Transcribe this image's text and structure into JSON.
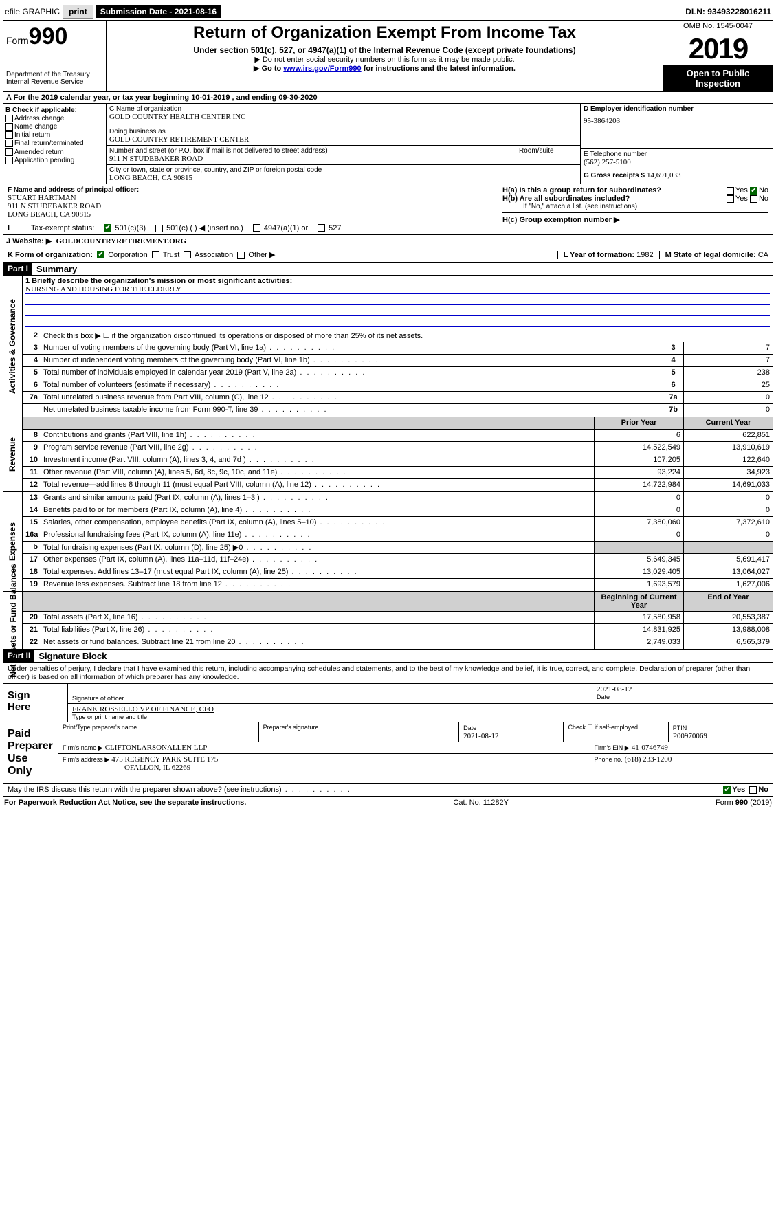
{
  "topbar": {
    "efile": "efile GRAPHIC",
    "print": "print",
    "subdate_label": "Submission Date - 2021-08-16",
    "dln": "DLN: 93493228016211"
  },
  "header": {
    "form_label": "Form",
    "form_num": "990",
    "dept": "Department of the Treasury",
    "irs": "Internal Revenue Service",
    "title": "Return of Organization Exempt From Income Tax",
    "subtitle": "Under section 501(c), 527, or 4947(a)(1) of the Internal Revenue Code (except private foundations)",
    "note1": "▶ Do not enter social security numbers on this form as it may be made public.",
    "note2_pre": "▶ Go to ",
    "note2_link": "www.irs.gov/Form990",
    "note2_post": " for instructions and the latest information.",
    "omb": "OMB No. 1545-0047",
    "year": "2019",
    "inspect": "Open to Public Inspection"
  },
  "sectionA": "A For the 2019 calendar year, or tax year beginning 10-01-2019     , and ending 09-30-2020",
  "boxB": {
    "title": "B Check if applicable:",
    "items": [
      "Address change",
      "Name change",
      "Initial return",
      "Final return/terminated",
      "Amended return",
      "Application pending"
    ]
  },
  "boxC": {
    "name_label": "C Name of organization",
    "name": "GOLD COUNTRY HEALTH CENTER INC",
    "dba_label": "Doing business as",
    "dba": "GOLD COUNTRY RETIREMENT CENTER",
    "addr_label": "Number and street (or P.O. box if mail is not delivered to street address)",
    "room_label": "Room/suite",
    "addr": "911 N STUDEBAKER ROAD",
    "city_label": "City or town, state or province, country, and ZIP or foreign postal code",
    "city": "LONG BEACH, CA  90815"
  },
  "boxD": {
    "label": "D Employer identification number",
    "value": "95-3864203"
  },
  "boxE": {
    "label": "E Telephone number",
    "value": "(562) 257-5100"
  },
  "boxG": {
    "label": "G Gross receipts $",
    "value": "14,691,033"
  },
  "boxF": {
    "label": "F Name and address of principal officer:",
    "name": "STUART HARTMAN",
    "addr1": "911 N STUDEBAKER ROAD",
    "addr2": "LONG BEACH, CA  90815"
  },
  "boxH": {
    "a": "H(a)  Is this a group return for subordinates?",
    "b": "H(b)  Are all subordinates included?",
    "b_note": "If \"No,\" attach a list. (see instructions)",
    "c": "H(c)  Group exemption number ▶",
    "yes": "Yes",
    "no": "No"
  },
  "boxI": {
    "label": "Tax-exempt status:",
    "opts": [
      "501(c)(3)",
      "501(c) (  ) ◀ (insert no.)",
      "4947(a)(1) or",
      "527"
    ]
  },
  "boxJ": {
    "label": "J  Website: ▶",
    "value": "GOLDCOUNTRYRETIREMENT.ORG"
  },
  "boxK": {
    "label": "K Form of organization:",
    "opts": [
      "Corporation",
      "Trust",
      "Association",
      "Other ▶"
    ]
  },
  "boxL": {
    "label": "L Year of formation:",
    "value": "1982"
  },
  "boxM": {
    "label": "M State of legal domicile:",
    "value": "CA"
  },
  "partI": {
    "head": "Part I",
    "title": "Summary"
  },
  "summary": {
    "tabs": [
      "Activities & Governance",
      "Revenue",
      "Expenses",
      "Net Assets or Fund Balances"
    ],
    "line1_label": "1  Briefly describe the organization's mission or most significant activities:",
    "line1_value": "NURSING AND HOUSING FOR THE ELDERLY",
    "line2": "Check this box ▶ ☐  if the organization discontinued its operations or disposed of more than 25% of its net assets.",
    "rows_top": [
      {
        "n": "3",
        "t": "Number of voting members of the governing body (Part VI, line 1a)",
        "b": "3",
        "v": "7"
      },
      {
        "n": "4",
        "t": "Number of independent voting members of the governing body (Part VI, line 1b)",
        "b": "4",
        "v": "7"
      },
      {
        "n": "5",
        "t": "Total number of individuals employed in calendar year 2019 (Part V, line 2a)",
        "b": "5",
        "v": "238"
      },
      {
        "n": "6",
        "t": "Total number of volunteers (estimate if necessary)",
        "b": "6",
        "v": "25"
      },
      {
        "n": "7a",
        "t": "Total unrelated business revenue from Part VIII, column (C), line 12",
        "b": "7a",
        "v": "0"
      },
      {
        "n": "",
        "t": "Net unrelated business taxable income from Form 990-T, line 39",
        "b": "7b",
        "v": "0"
      }
    ],
    "col_heads": {
      "prior": "Prior Year",
      "current": "Current Year",
      "boy": "Beginning of Current Year",
      "eoy": "End of Year"
    },
    "rows_rev": [
      {
        "n": "8",
        "t": "Contributions and grants (Part VIII, line 1h)",
        "p": "6",
        "c": "622,851"
      },
      {
        "n": "9",
        "t": "Program service revenue (Part VIII, line 2g)",
        "p": "14,522,549",
        "c": "13,910,619"
      },
      {
        "n": "10",
        "t": "Investment income (Part VIII, column (A), lines 3, 4, and 7d )",
        "p": "107,205",
        "c": "122,640"
      },
      {
        "n": "11",
        "t": "Other revenue (Part VIII, column (A), lines 5, 6d, 8c, 9c, 10c, and 11e)",
        "p": "93,224",
        "c": "34,923"
      },
      {
        "n": "12",
        "t": "Total revenue—add lines 8 through 11 (must equal Part VIII, column (A), line 12)",
        "p": "14,722,984",
        "c": "14,691,033"
      }
    ],
    "rows_exp": [
      {
        "n": "13",
        "t": "Grants and similar amounts paid (Part IX, column (A), lines 1–3 )",
        "p": "0",
        "c": "0"
      },
      {
        "n": "14",
        "t": "Benefits paid to or for members (Part IX, column (A), line 4)",
        "p": "0",
        "c": "0"
      },
      {
        "n": "15",
        "t": "Salaries, other compensation, employee benefits (Part IX, column (A), lines 5–10)",
        "p": "7,380,060",
        "c": "7,372,610"
      },
      {
        "n": "16a",
        "t": "Professional fundraising fees (Part IX, column (A), line 11e)",
        "p": "0",
        "c": "0"
      },
      {
        "n": "b",
        "t": "Total fundraising expenses (Part IX, column (D), line 25) ▶0",
        "p": "",
        "c": "",
        "shade": true
      },
      {
        "n": "17",
        "t": "Other expenses (Part IX, column (A), lines 11a–11d, 11f–24e)",
        "p": "5,649,345",
        "c": "5,691,417"
      },
      {
        "n": "18",
        "t": "Total expenses. Add lines 13–17 (must equal Part IX, column (A), line 25)",
        "p": "13,029,405",
        "c": "13,064,027"
      },
      {
        "n": "19",
        "t": "Revenue less expenses. Subtract line 18 from line 12",
        "p": "1,693,579",
        "c": "1,627,006"
      }
    ],
    "rows_net": [
      {
        "n": "20",
        "t": "Total assets (Part X, line 16)",
        "p": "17,580,958",
        "c": "20,553,387"
      },
      {
        "n": "21",
        "t": "Total liabilities (Part X, line 26)",
        "p": "14,831,925",
        "c": "13,988,008"
      },
      {
        "n": "22",
        "t": "Net assets or fund balances. Subtract line 21 from line 20",
        "p": "2,749,033",
        "c": "6,565,379"
      }
    ]
  },
  "partII": {
    "head": "Part II",
    "title": "Signature Block"
  },
  "perjury": "Under penalties of perjury, I declare that I have examined this return, including accompanying schedules and statements, and to the best of my knowledge and belief, it is true, correct, and complete. Declaration of preparer (other than officer) is based on all information of which preparer has any knowledge.",
  "sign": {
    "here": "Sign Here",
    "sig_officer": "Signature of officer",
    "date": "2021-08-12",
    "date_label": "Date",
    "officer_name": "FRANK ROSSELLO  VP OF FINANCE, CFO",
    "type_name": "Type or print name and title"
  },
  "paid": {
    "label": "Paid Preparer Use Only",
    "h_prep": "Print/Type preparer's name",
    "h_sig": "Preparer's signature",
    "h_date": "Date",
    "date": "2021-08-12",
    "check_self": "Check ☐ if self-employed",
    "ptin_label": "PTIN",
    "ptin": "P00970069",
    "firm_name_label": "Firm's name    ▶",
    "firm_name": "CLIFTONLARSONALLEN LLP",
    "firm_ein_label": "Firm's EIN ▶",
    "firm_ein": "41-0746749",
    "firm_addr_label": "Firm's address ▶",
    "firm_addr1": "475 REGENCY PARK SUITE 175",
    "firm_addr2": "OFALLON, IL  62269",
    "phone_label": "Phone no.",
    "phone": "(618) 233-1200"
  },
  "discuss": "May the IRS discuss this return with the preparer shown above? (see instructions)",
  "footer": {
    "pra": "For Paperwork Reduction Act Notice, see the separate instructions.",
    "cat": "Cat. No. 11282Y",
    "form": "Form 990 (2019)"
  }
}
